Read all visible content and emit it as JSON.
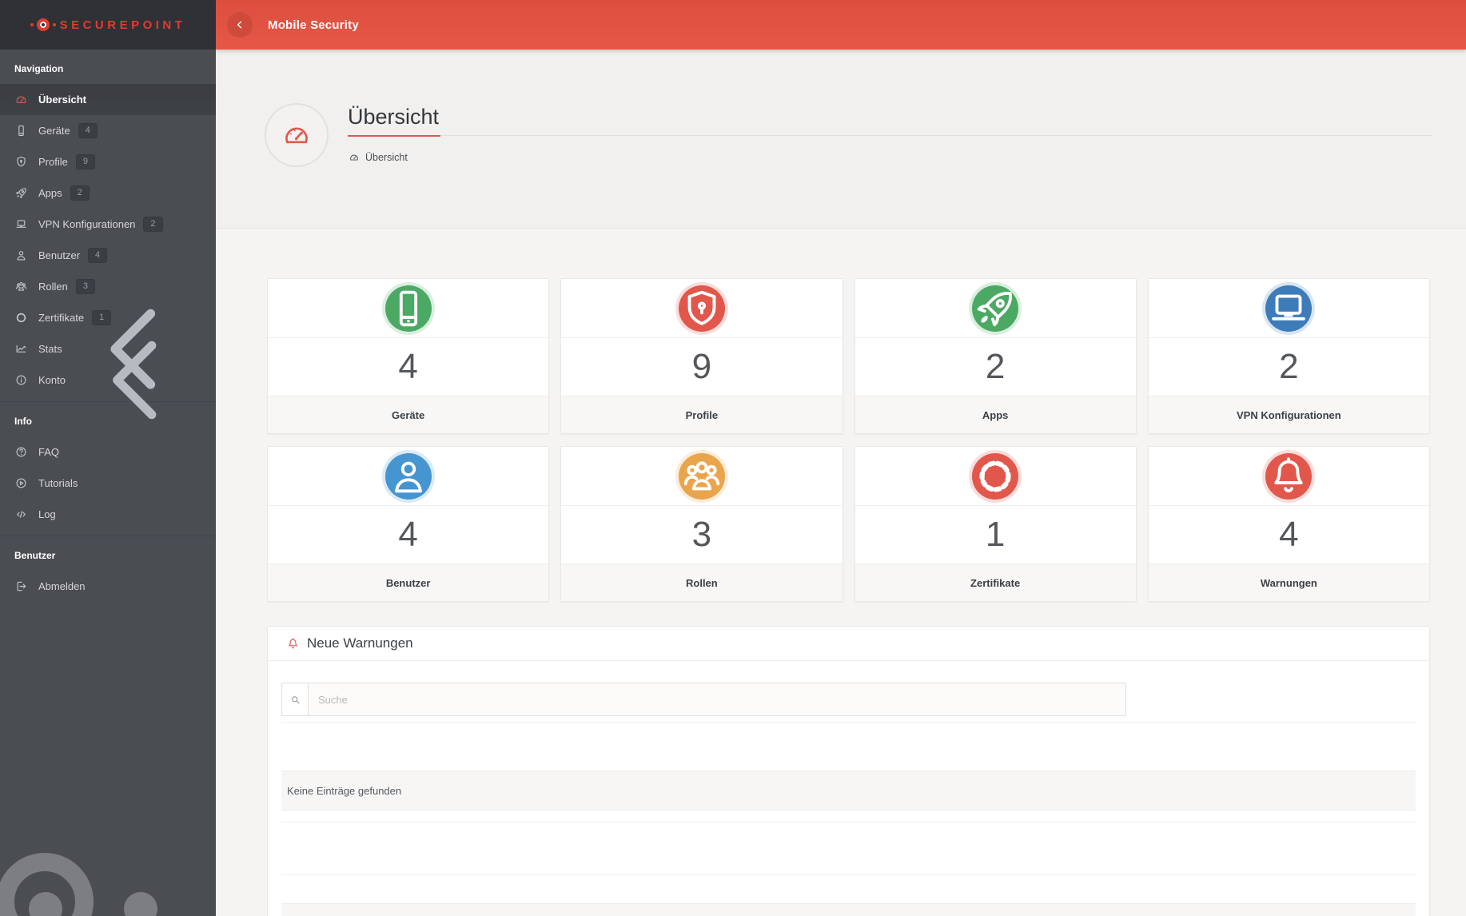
{
  "brand": {
    "name": "SECUREPOINT"
  },
  "header": {
    "title": "Mobile Security"
  },
  "page": {
    "title": "Übersicht",
    "breadcrumb": {
      "icon": "gauge",
      "label": "Übersicht"
    }
  },
  "colors": {
    "primary_red": "#e2503f",
    "accent_red": "#e2574c",
    "green": "#4ca964",
    "blue_dark": "#3d7cb8",
    "blue_light": "#4595d1",
    "orange": "#e9a54c",
    "sidebar_bg": "#4a4d52"
  },
  "sidebar": {
    "sections": [
      {
        "header": "Navigation",
        "items": [
          {
            "label": "Übersicht",
            "icon": "gauge",
            "active": true
          },
          {
            "label": "Geräte",
            "icon": "smartphone",
            "badge": "4"
          },
          {
            "label": "Profile",
            "icon": "shield",
            "badge": "9"
          },
          {
            "label": "Apps",
            "icon": "rocket",
            "badge": "2"
          },
          {
            "label": "VPN Konfigurationen",
            "icon": "laptop",
            "badge": "2"
          },
          {
            "label": "Benutzer",
            "icon": "user",
            "badge": "4"
          },
          {
            "label": "Rollen",
            "icon": "users",
            "badge": "3"
          },
          {
            "label": "Zertifikate",
            "icon": "certificate",
            "badge": "1"
          },
          {
            "label": "Stats",
            "icon": "chart",
            "collapsed": true
          },
          {
            "label": "Konto",
            "icon": "info",
            "collapsed": true
          }
        ]
      },
      {
        "header": "Info",
        "items": [
          {
            "label": "FAQ",
            "icon": "question"
          },
          {
            "label": "Tutorials",
            "icon": "play"
          },
          {
            "label": "Log",
            "icon": "code"
          }
        ]
      },
      {
        "header": "Benutzer",
        "items": [
          {
            "label": "Abmelden",
            "icon": "signout"
          }
        ]
      }
    ]
  },
  "stats_cards": [
    {
      "label": "Geräte",
      "value": "4",
      "icon": "smartphone",
      "color": "#4ca964"
    },
    {
      "label": "Profile",
      "value": "9",
      "icon": "shield",
      "color": "#e2574c"
    },
    {
      "label": "Apps",
      "value": "2",
      "icon": "rocket",
      "color": "#4ca964"
    },
    {
      "label": "VPN Konfigurationen",
      "value": "2",
      "icon": "laptop",
      "color": "#3d7cb8"
    },
    {
      "label": "Benutzer",
      "value": "4",
      "icon": "user",
      "color": "#4595d1"
    },
    {
      "label": "Rollen",
      "value": "3",
      "icon": "users",
      "color": "#e9a54c"
    },
    {
      "label": "Zertifikate",
      "value": "1",
      "icon": "certificate",
      "color": "#e2574c"
    },
    {
      "label": "Warnungen",
      "value": "4",
      "icon": "bell",
      "color": "#e2574c"
    }
  ],
  "warnings": {
    "title": "Neue Warnungen",
    "icon": "bell",
    "search_placeholder": "Suche",
    "empty_text": "Keine Einträge gefunden"
  }
}
